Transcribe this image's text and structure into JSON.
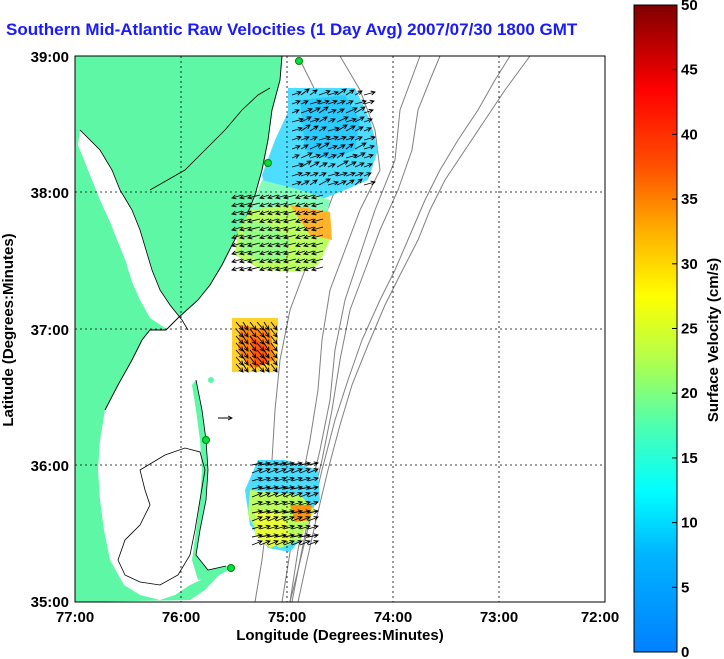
{
  "title": "Southern Mid-Atlantic Raw Velocities (1 Day Avg) 2007/07/30 1800 GMT",
  "map": {
    "xlabel": "Longitude (Degrees:Minutes)",
    "ylabel": "Latitude (Degrees:Minutes)",
    "x_ticks": [
      "77:00",
      "76:00",
      "75:00",
      "74:00",
      "73:00",
      "72:00"
    ],
    "y_ticks": [
      "39:00",
      "38:00",
      "37:00",
      "36:00",
      "35:00"
    ],
    "land_color": "#5ef7a6",
    "water_color": "#ffffff"
  },
  "colorbar": {
    "label": "Surface Velocity (cm/s)",
    "ticks": [
      "50",
      "45",
      "40",
      "35",
      "30",
      "25",
      "20",
      "15",
      "10",
      "5",
      "0"
    ],
    "range": [
      0,
      50
    ],
    "colormap": "jet"
  }
}
